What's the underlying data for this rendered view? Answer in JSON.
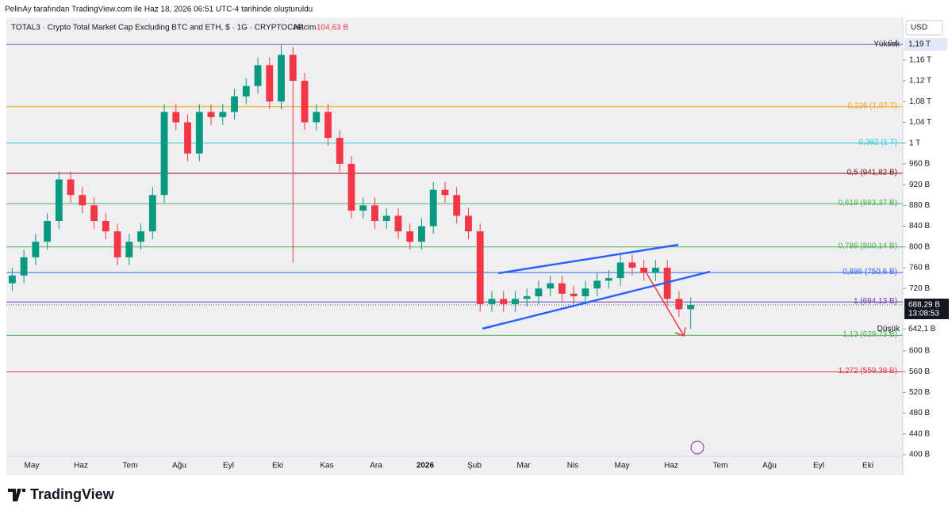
{
  "header": {
    "credit": "PelinAy tarafından TradingView.com ile Haz 18, 2026 06:51 UTC-4 tarihinde oluşturuldu",
    "brand": "TradingView"
  },
  "chart_data": {
    "type": "candlestick",
    "title": "TOTAL3 · Crypto Total Market Cap Excluding BTC and ETH, $ · 1G · CRYPTOCAP",
    "volume_label": "Hacim",
    "volume_value": "104,63 B",
    "currency": "USD",
    "up_color": "#089981",
    "down_color": "#f23645",
    "open": [
      730,
      745,
      780,
      810,
      850,
      930,
      900,
      880,
      850,
      830,
      780,
      810,
      830,
      900,
      1060,
      1040,
      980,
      1060,
      1050,
      1060,
      1090,
      1110,
      1150,
      1080,
      1170,
      1120,
      1040,
      1060,
      1010,
      960,
      870,
      880,
      850,
      860,
      830,
      810,
      840,
      910,
      900,
      860,
      830,
      690,
      700,
      690,
      700,
      705,
      720,
      730,
      710,
      705,
      720,
      735,
      740,
      770,
      760,
      750,
      760,
      700,
      680
    ],
    "high": [
      760,
      795,
      825,
      865,
      945,
      945,
      915,
      895,
      865,
      845,
      825,
      845,
      915,
      1075,
      1075,
      1055,
      1075,
      1075,
      1075,
      1105,
      1125,
      1165,
      1165,
      1190,
      1185,
      1135,
      1075,
      1075,
      1025,
      975,
      895,
      895,
      875,
      875,
      845,
      855,
      925,
      925,
      915,
      875,
      845,
      715,
      715,
      715,
      720,
      735,
      745,
      745,
      725,
      735,
      750,
      755,
      785,
      785,
      775,
      775,
      775,
      715,
      703
    ],
    "low": [
      715,
      730,
      765,
      795,
      835,
      885,
      865,
      835,
      815,
      765,
      765,
      795,
      815,
      885,
      1025,
      965,
      965,
      1035,
      1035,
      1045,
      1075,
      1095,
      1065,
      1065,
      770,
      1025,
      1025,
      995,
      945,
      855,
      855,
      835,
      835,
      815,
      795,
      795,
      825,
      885,
      845,
      815,
      675,
      675,
      675,
      675,
      685,
      690,
      705,
      695,
      690,
      690,
      705,
      720,
      725,
      745,
      735,
      735,
      685,
      665,
      642.1
    ],
    "close": [
      745,
      780,
      810,
      850,
      930,
      900,
      880,
      850,
      830,
      780,
      810,
      830,
      900,
      1060,
      1040,
      980,
      1060,
      1050,
      1060,
      1090,
      1110,
      1150,
      1080,
      1170,
      1120,
      1040,
      1060,
      1010,
      960,
      870,
      880,
      850,
      860,
      830,
      810,
      840,
      910,
      900,
      860,
      830,
      690,
      700,
      690,
      700,
      705,
      720,
      730,
      710,
      705,
      720,
      735,
      740,
      770,
      760,
      750,
      760,
      700,
      680,
      688.29
    ],
    "ylim": [
      397,
      1242
    ],
    "yticks": [
      {
        "value": 1160,
        "label": "1,16 T"
      },
      {
        "value": 1120,
        "label": "1,12 T"
      },
      {
        "value": 1080,
        "label": "1,08 T"
      },
      {
        "value": 1040,
        "label": "1,04 T"
      },
      {
        "value": 1000,
        "label": "1 T"
      },
      {
        "value": 960,
        "label": "960 B"
      },
      {
        "value": 920,
        "label": "920 B"
      },
      {
        "value": 880,
        "label": "880 B"
      },
      {
        "value": 840,
        "label": "840 B"
      },
      {
        "value": 800,
        "label": "800 B"
      },
      {
        "value": 760,
        "label": "760 B"
      },
      {
        "value": 720,
        "label": "720 B"
      },
      {
        "value": 600,
        "label": "600 B"
      },
      {
        "value": 560,
        "label": "560 B"
      },
      {
        "value": 520,
        "label": "520 B"
      },
      {
        "value": 480,
        "label": "480 B"
      },
      {
        "value": 440,
        "label": "440 B"
      },
      {
        "value": 400,
        "label": "400 B"
      }
    ],
    "time_labels": [
      "May",
      "Haz",
      "Tem",
      "Ağu",
      "Eyl",
      "Eki",
      "Kas",
      "Ara",
      "2026",
      "Şub",
      "Mar",
      "Nis",
      "May",
      "Haz",
      "Tem",
      "Ağu",
      "Eyl",
      "Eki"
    ],
    "levels": [
      {
        "label": "0 (",
        "value": 1190,
        "color": "#5b5ea6"
      },
      {
        "label": "0,236 (1,07 T)",
        "value": 1070,
        "color": "#f7a21b"
      },
      {
        "label": "0,382 (1 T)",
        "value": 1000,
        "color": "#26c6da"
      },
      {
        "label": "0,5 (941,82 B)",
        "value": 941.82,
        "color": "#880e1a"
      },
      {
        "label": "0,618 (883,37 B)",
        "value": 883.37,
        "color": "#4caf50"
      },
      {
        "label": "0,786 (800,14 B)",
        "value": 800.14,
        "color": "#4caf50"
      },
      {
        "label": "0,886 (750,6 B)",
        "value": 750.6,
        "color": "#2962ff"
      },
      {
        "label": "1 (694,13 B)",
        "value": 694.13,
        "color": "#673ab7"
      },
      {
        "label": "1,13 (629,73 B)",
        "value": 629.73,
        "color": "#4caf50"
      },
      {
        "label": "1,272 (559,39 B)",
        "value": 559.39,
        "color": "#f23645"
      }
    ],
    "high_marker": {
      "label": "Yüksek",
      "value": 1190,
      "value_label": "1,19 T"
    },
    "low_marker": {
      "label": "Düşük",
      "value": 642.1,
      "value_label": "642,1 B"
    },
    "last_price": {
      "value": 688.29,
      "value_label": "688,29 B",
      "countdown": "13:08:53"
    }
  }
}
